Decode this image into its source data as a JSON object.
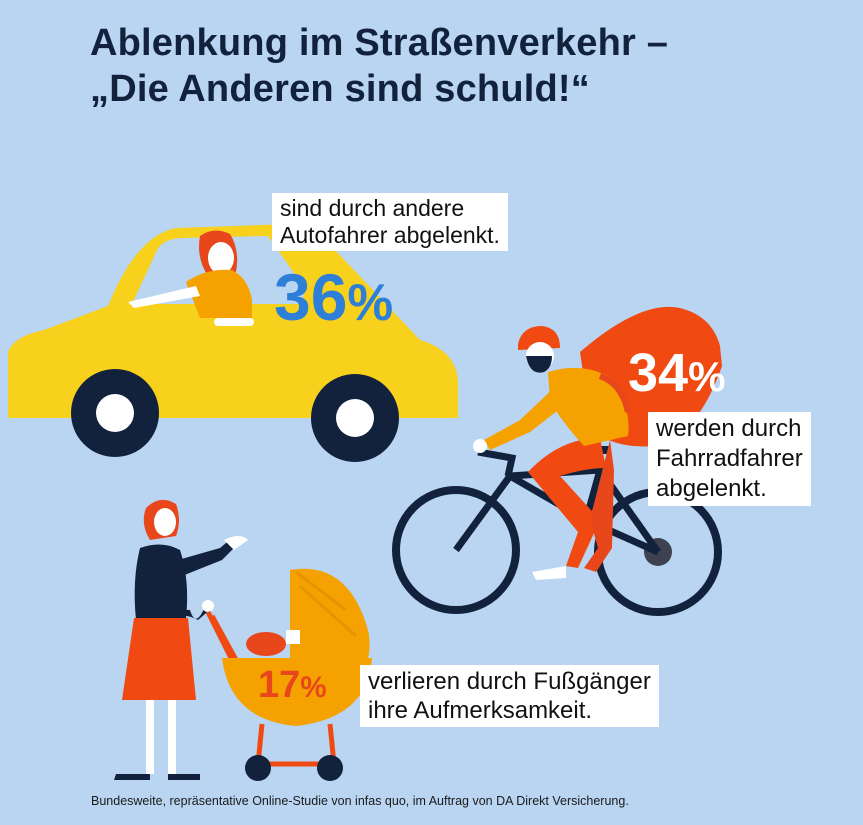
{
  "title": {
    "line1": "Ablenkung im Straßenverkehr –",
    "line2": "„Die Anderen sind schuld!“"
  },
  "stats": [
    {
      "id": "car",
      "value": "36",
      "symbol": "%",
      "text_line1": "sind durch andere",
      "text_line2": "Autofahrer abgelenkt.",
      "color": "#2e7fd8"
    },
    {
      "id": "bike",
      "value": "34",
      "symbol": "%",
      "text_line1": "werden durch",
      "text_line2": "Fahrradfahrer",
      "text_line3": "abgelenkt.",
      "color": "#ffffff"
    },
    {
      "id": "pedestrian",
      "value": "17",
      "symbol": "%",
      "text_line1": "verlieren durch Fußgänger",
      "text_line2": "ihre Aufmerksamkeit.",
      "color": "#e8471c"
    }
  ],
  "footer": "Bundesweite, repräsentative Online-Studie von infas quo, im Auftrag von DA Direkt Versicherung.",
  "colors": {
    "background": "#b9d5f1",
    "title": "#12223d",
    "car": "#f7d11c",
    "orange": "#f5a100",
    "red_orange": "#f04a12",
    "navy": "#12223d"
  }
}
